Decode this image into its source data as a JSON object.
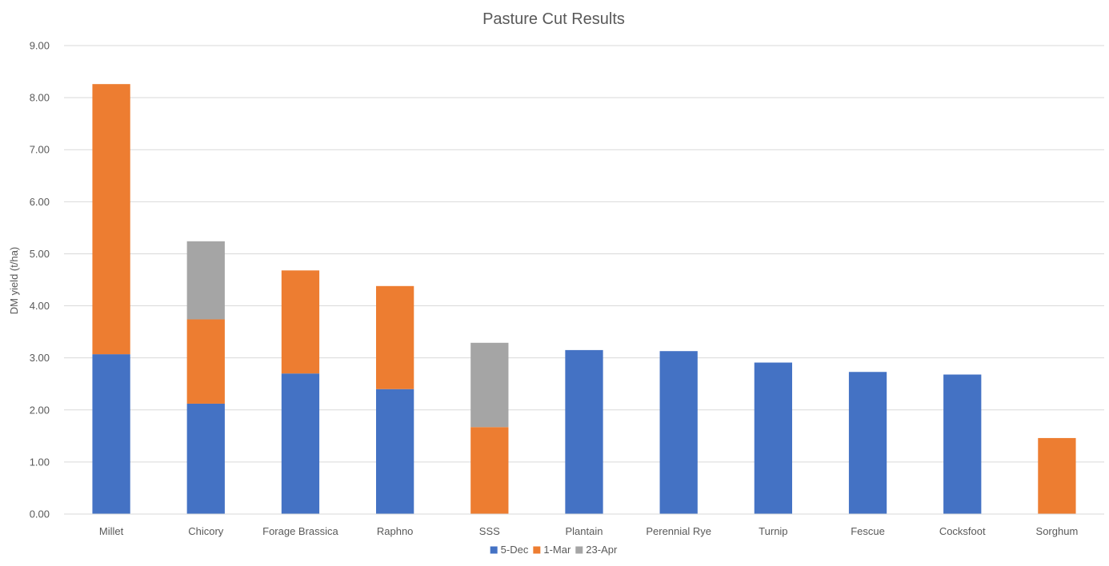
{
  "chart_data": {
    "type": "bar",
    "stacked": true,
    "title": "Pasture Cut Results",
    "xlabel": "",
    "ylabel": "DM yield (t/ha)",
    "ylim": [
      0,
      9
    ],
    "ytick_step": 1,
    "ytick_format_decimals": 2,
    "grid": true,
    "legend_position": "bottom",
    "categories": [
      "Millet",
      "Chicory",
      "Forage Brassica",
      "Raphno",
      "SSS",
      "Plantain",
      "Perennial Rye",
      "Turnip",
      "Fescue",
      "Cocksfoot",
      "Sorghum"
    ],
    "series": [
      {
        "name": "5-Dec",
        "color": "#4472c4",
        "values": [
          3.07,
          2.12,
          2.7,
          2.4,
          0,
          3.15,
          3.13,
          2.91,
          2.73,
          2.68,
          0
        ]
      },
      {
        "name": "1-Mar",
        "color": "#ed7d31",
        "values": [
          5.19,
          1.62,
          1.98,
          1.98,
          1.67,
          0,
          0,
          0,
          0,
          0,
          1.46
        ]
      },
      {
        "name": "23-Apr",
        "color": "#a5a5a5",
        "values": [
          0,
          1.5,
          0,
          0,
          1.62,
          0,
          0,
          0,
          0,
          0,
          0
        ]
      }
    ]
  }
}
